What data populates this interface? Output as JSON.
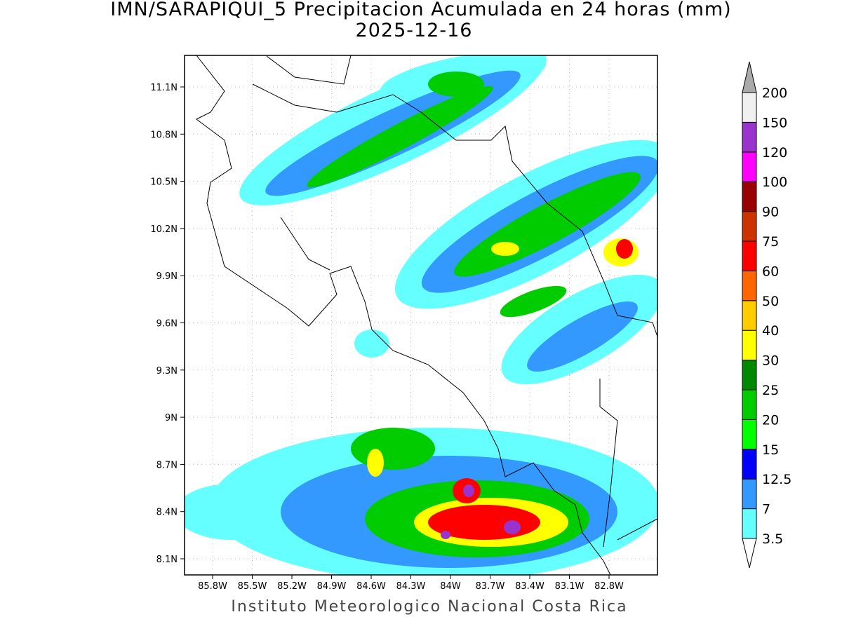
{
  "title": "IMN/SARAPIQUI_5 Precipitacion Acumulada en 24 horas (mm)",
  "subtitle": "2025-12-16",
  "footer": "Instituto Meteorologico Nacional Costa Rica",
  "map": {
    "lat_ticks": [
      "11.1N",
      "10.8N",
      "10.5N",
      "10.2N",
      "9.9N",
      "9.6N",
      "9.3N",
      "9N",
      "8.7N",
      "8.4N",
      "8.1N"
    ],
    "lon_ticks": [
      "85.8W",
      "85.5W",
      "85.2W",
      "84.9W",
      "84.6W",
      "84.3W",
      "84W",
      "83.7W",
      "83.4W",
      "83.1W",
      "82.8W"
    ]
  },
  "colorbar": {
    "levels": [
      3.5,
      7,
      12.5,
      15,
      20,
      25,
      30,
      40,
      50,
      60,
      75,
      90,
      100,
      120,
      150,
      200
    ],
    "colors": [
      "#66ffff",
      "#3399ff",
      "#0000ff",
      "#00ff00",
      "#00cc00",
      "#008800",
      "#ffff00",
      "#ffcc00",
      "#ff6600",
      "#ff0000",
      "#cc3300",
      "#990000",
      "#ff00ff",
      "#9933cc",
      "#f0f0f0"
    ],
    "under_color": "#ffffff",
    "over_color": "#aaaaaa"
  }
}
